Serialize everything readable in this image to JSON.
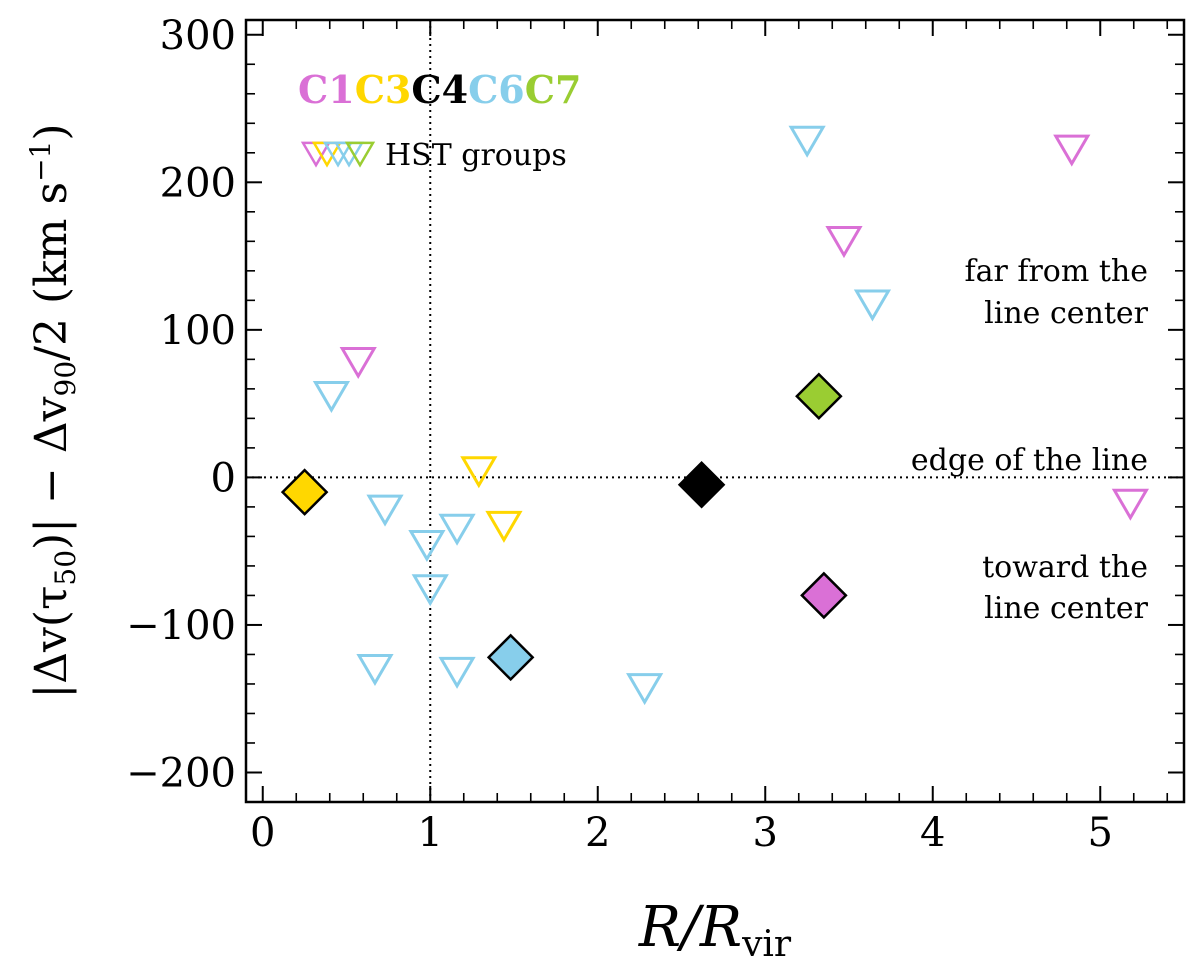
{
  "chart_data": {
    "type": "scatter",
    "xlabel_main": "R/R",
    "xlabel_sub": "vir",
    "ylabel_main": "|Δv(τ",
    "ylabel_sub": "50",
    "ylabel_mid": ")| − Δv",
    "ylabel_sub2": "90",
    "ylabel_end": "/2  (km s",
    "ylabel_sup": "−1",
    "ylabel_close": ")",
    "xlim": [
      -0.1,
      5.5
    ],
    "ylim": [
      -220,
      310
    ],
    "x_ticks": [
      0,
      1,
      2,
      3,
      4,
      5
    ],
    "x_tick_labels": [
      "0",
      "1",
      "2",
      "3",
      "4",
      "5"
    ],
    "y_ticks": [
      -200,
      -100,
      0,
      100,
      200,
      300
    ],
    "y_tick_labels": [
      "−200",
      "−100",
      "0",
      "100",
      "200",
      "300"
    ],
    "reference_lines": {
      "vertical_x": 1,
      "horizontal_y": 0
    },
    "grid": false,
    "colors": {
      "C1": "#da70d6",
      "C3": "#ffd700",
      "C4": "#000000",
      "C6": "#87ceeb",
      "C7": "#9acd32"
    },
    "legend": {
      "placement": "top-left",
      "entries": [
        {
          "label": "C1",
          "color": "#da70d6"
        },
        {
          "label": "C3",
          "color": "#ffd700"
        },
        {
          "label": "C4",
          "color": "#000000"
        },
        {
          "label": "C6",
          "color": "#87ceeb"
        },
        {
          "label": "C7",
          "color": "#9acd32"
        }
      ],
      "hst_label": "HST groups"
    },
    "annotations": {
      "far_line1": "far from the",
      "far_line2": "line center",
      "edge": "edge of the line",
      "toward_line1": "toward the",
      "toward_line2": "line center"
    },
    "series": [
      {
        "group": "C1",
        "marker": "filled-diamond",
        "color": "#da70d6",
        "points": [
          {
            "x": 3.35,
            "y": -80
          }
        ]
      },
      {
        "group": "C3",
        "marker": "filled-diamond",
        "color": "#ffd700",
        "points": [
          {
            "x": 0.25,
            "y": -10
          }
        ]
      },
      {
        "group": "C4",
        "marker": "filled-diamond",
        "color": "#000000",
        "points": [
          {
            "x": 2.62,
            "y": -5
          }
        ]
      },
      {
        "group": "C6",
        "marker": "filled-diamond",
        "color": "#87ceeb",
        "points": [
          {
            "x": 1.48,
            "y": -122
          }
        ]
      },
      {
        "group": "C7",
        "marker": "filled-diamond",
        "color": "#9acd32",
        "points": [
          {
            "x": 3.32,
            "y": 55
          }
        ]
      },
      {
        "group": "C1 HST",
        "marker": "open-triangle-down",
        "color": "#da70d6",
        "points": [
          {
            "x": 0.57,
            "y": 78
          },
          {
            "x": 3.47,
            "y": 160
          },
          {
            "x": 4.83,
            "y": 222
          },
          {
            "x": 5.18,
            "y": -18
          }
        ]
      },
      {
        "group": "C3 HST",
        "marker": "open-triangle-down",
        "color": "#ffd700",
        "points": [
          {
            "x": 1.29,
            "y": 4
          },
          {
            "x": 1.44,
            "y": -33
          }
        ]
      },
      {
        "group": "C6 HST",
        "marker": "open-triangle-down",
        "color": "#87ceeb",
        "points": [
          {
            "x": 0.41,
            "y": 55
          },
          {
            "x": 0.73,
            "y": -22
          },
          {
            "x": 0.98,
            "y": -46
          },
          {
            "x": 1.16,
            "y": -35
          },
          {
            "x": 1.0,
            "y": -76
          },
          {
            "x": 0.67,
            "y": -130
          },
          {
            "x": 1.16,
            "y": -132
          },
          {
            "x": 2.28,
            "y": -143
          },
          {
            "x": 3.25,
            "y": 228
          },
          {
            "x": 3.64,
            "y": 117
          }
        ]
      }
    ]
  }
}
